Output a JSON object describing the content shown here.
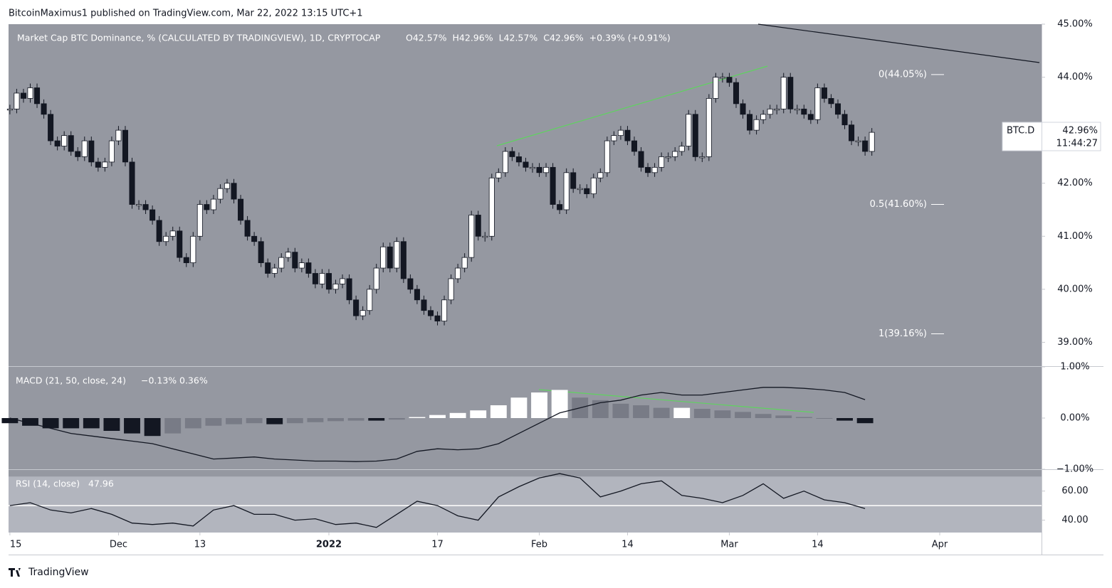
{
  "byline": "BitcoinMaximus1 published on TradingView.com, Mar 22, 2022 13:15 UTC+1",
  "brand": "TradingView",
  "chart_data": {
    "type": "candlestick",
    "title": "Market Cap BTC Dominance, % (CALCULATED BY TRADINGVIEW), 1D, CRYPTOCAP",
    "ohlc_legend": [
      "O42.57%",
      "H42.96%",
      "L42.57%",
      "C42.96%",
      "+0.39% (+0.91%)"
    ],
    "symbol": "BTC.D",
    "last_label": "42.96%",
    "countdown": "11:44:27",
    "closes": [
      43.4,
      43.7,
      43.6,
      43.8,
      43.5,
      43.3,
      42.8,
      42.7,
      42.9,
      42.6,
      42.5,
      42.8,
      42.4,
      42.3,
      42.4,
      42.8,
      43.0,
      42.4,
      41.6,
      41.6,
      41.5,
      41.3,
      40.9,
      41.0,
      41.1,
      40.6,
      40.5,
      41.0,
      41.6,
      41.5,
      41.7,
      41.9,
      42.0,
      41.7,
      41.3,
      41.0,
      40.9,
      40.5,
      40.3,
      40.4,
      40.6,
      40.7,
      40.4,
      40.5,
      40.3,
      40.1,
      40.3,
      40.0,
      40.1,
      40.2,
      39.8,
      39.5,
      39.6,
      40.0,
      40.4,
      40.8,
      40.4,
      40.9,
      40.2,
      40.0,
      39.8,
      39.6,
      39.5,
      39.4,
      39.8,
      40.2,
      40.4,
      40.6,
      41.4,
      41.0,
      41.0,
      42.1,
      42.2,
      42.6,
      42.5,
      42.4,
      42.3,
      42.3,
      42.2,
      42.3,
      41.6,
      41.5,
      42.2,
      41.9,
      41.9,
      41.8,
      42.1,
      42.2,
      42.8,
      42.9,
      43.0,
      42.8,
      42.6,
      42.3,
      42.2,
      42.3,
      42.5,
      42.5,
      42.6,
      42.7,
      43.3,
      42.5,
      42.5,
      43.6,
      44.0,
      44.0,
      43.9,
      43.5,
      43.3,
      43.0,
      43.2,
      43.3,
      43.4,
      43.4,
      44.0,
      43.4,
      43.4,
      43.3,
      43.2,
      43.8,
      43.6,
      43.5,
      43.3,
      43.1,
      42.8,
      42.8,
      42.6,
      42.96
    ],
    "ylim": [
      38.55,
      45.0
    ],
    "yticks": [
      {
        "value": 45,
        "label": "45.00%"
      },
      {
        "value": 44,
        "label": "44.00%"
      },
      {
        "value": 42,
        "label": "42.00%"
      },
      {
        "value": 41,
        "label": "41.00%"
      },
      {
        "value": 40,
        "label": "40.00%"
      },
      {
        "value": 39,
        "label": "39.00%"
      }
    ],
    "xlim": [
      -0.2,
      152
    ],
    "xticks": [
      {
        "value": 0,
        "label": "15"
      },
      {
        "value": 16,
        "label": "Dec"
      },
      {
        "value": 28,
        "label": "13"
      },
      {
        "value": 47,
        "label": "2022"
      },
      {
        "value": 63,
        "label": "17"
      },
      {
        "value": 78,
        "label": "Feb"
      },
      {
        "value": 91,
        "label": "14"
      },
      {
        "value": 106,
        "label": "Mar"
      },
      {
        "value": 119,
        "label": "14"
      },
      {
        "value": 137,
        "label": "Apr"
      }
    ],
    "fib_levels": [
      {
        "value": 44.05,
        "label": "0(44.05%)"
      },
      {
        "value": 41.6,
        "label": "0.5(41.60%)"
      },
      {
        "value": 39.16,
        "label": "1(39.16%)"
      }
    ],
    "macd": {
      "title": "MACD (21, 50, close, 24)",
      "labels": [
        "−0.13%",
        "0.36%"
      ],
      "x_step": 3,
      "line": [
        0.0,
        -0.1,
        -0.2,
        -0.3,
        -0.35,
        -0.4,
        -0.45,
        -0.5,
        -0.6,
        -0.7,
        -0.8,
        -0.78,
        -0.76,
        -0.8,
        -0.82,
        -0.84,
        -0.84,
        -0.85,
        -0.84,
        -0.8,
        -0.65,
        -0.6,
        -0.62,
        -0.6,
        -0.5,
        -0.3,
        -0.1,
        0.1,
        0.2,
        0.3,
        0.35,
        0.45,
        0.5,
        0.45,
        0.45,
        0.5,
        0.55,
        0.6,
        0.6,
        0.58,
        0.55,
        0.5,
        0.36
      ],
      "histogram": [
        -0.1,
        -0.15,
        -0.2,
        -0.2,
        -0.2,
        -0.25,
        -0.3,
        -0.35,
        -0.3,
        -0.2,
        -0.15,
        -0.12,
        -0.1,
        -0.12,
        -0.1,
        -0.08,
        -0.06,
        -0.05,
        -0.05,
        -0.03,
        0.02,
        0.06,
        0.1,
        0.15,
        0.25,
        0.4,
        0.5,
        0.55,
        0.4,
        0.35,
        0.28,
        0.25,
        0.2,
        0.2,
        0.18,
        0.15,
        0.12,
        0.08,
        0.05,
        0.02,
        0,
        -0.05,
        -0.1
      ],
      "ylim": [
        -1.0,
        1.0
      ],
      "yticks": [
        {
          "value": 1,
          "label": "1.00%"
        },
        {
          "value": 0,
          "label": "0.00%"
        },
        {
          "value": -1,
          "label": "−1.00%"
        }
      ]
    },
    "rsi": {
      "title": "RSI (14, close)",
      "label": "47.96",
      "x_step": 3,
      "values": [
        50,
        52,
        47,
        45,
        48,
        44,
        38,
        37,
        38,
        36,
        47,
        50,
        44,
        44,
        40,
        41,
        37,
        38,
        35,
        44,
        53,
        50,
        43,
        40,
        56,
        63,
        69,
        72,
        69,
        56,
        60,
        65,
        67,
        57,
        55,
        52,
        57,
        65,
        55,
        60,
        54,
        52,
        48
      ],
      "band": [
        30,
        70
      ],
      "mid": 50,
      "ylim": [
        31.5,
        74.5
      ],
      "yticks": [
        {
          "value": 60,
          "label": "60.00"
        },
        {
          "value": 40,
          "label": "40.00"
        }
      ]
    }
  }
}
